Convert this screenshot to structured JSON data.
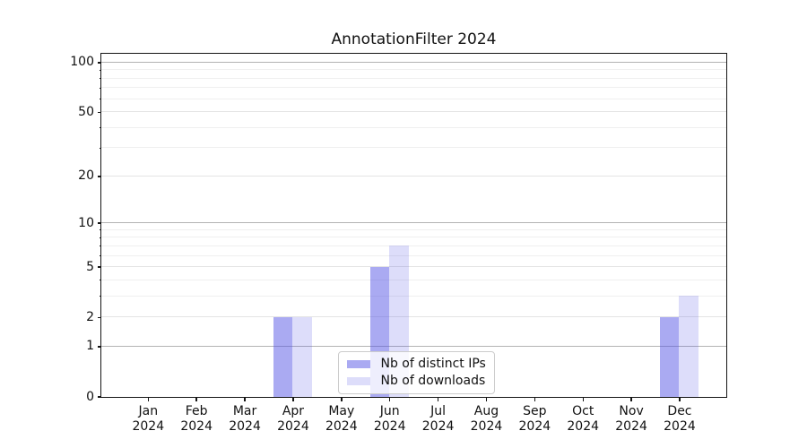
{
  "chart_data": {
    "type": "bar",
    "title": "AnnotationFilter 2024",
    "categories": [
      "Jan",
      "Feb",
      "Mar",
      "Apr",
      "May",
      "Jun",
      "Jul",
      "Aug",
      "Sep",
      "Oct",
      "Nov",
      "Dec"
    ],
    "category_year": "2024",
    "series": [
      {
        "name": "Nb of distinct IPs",
        "base_color": "#5555e6",
        "alpha": 0.5,
        "color": "rgba(85,85,230,0.5)",
        "values": [
          0,
          0,
          0,
          2,
          0,
          5,
          0,
          0,
          0,
          0,
          0,
          2
        ]
      },
      {
        "name": "Nb of downloads",
        "base_color": "#5555e6",
        "alpha": 0.2,
        "color": "rgba(85,85,230,0.2)",
        "values": [
          0,
          0,
          0,
          2,
          0,
          7,
          0,
          0,
          0,
          0,
          0,
          3
        ]
      }
    ],
    "xlabel": "",
    "ylabel": "",
    "yscale": "log1p",
    "ylim": [
      0,
      113
    ],
    "y_tick_values": [
      0,
      1,
      2,
      5,
      10,
      20,
      50,
      100
    ],
    "y_tick_labels": [
      "0",
      "1",
      "2",
      "5",
      "10",
      "20",
      "50",
      "100"
    ],
    "grid": {
      "major_lines": [
        1,
        10,
        100
      ],
      "labeled_minor_lines": [
        2,
        5,
        20,
        50
      ],
      "minor_lines": [
        3,
        4,
        6,
        7,
        8,
        9,
        30,
        40,
        60,
        70,
        80,
        90
      ]
    },
    "legend_position": "lower center"
  }
}
